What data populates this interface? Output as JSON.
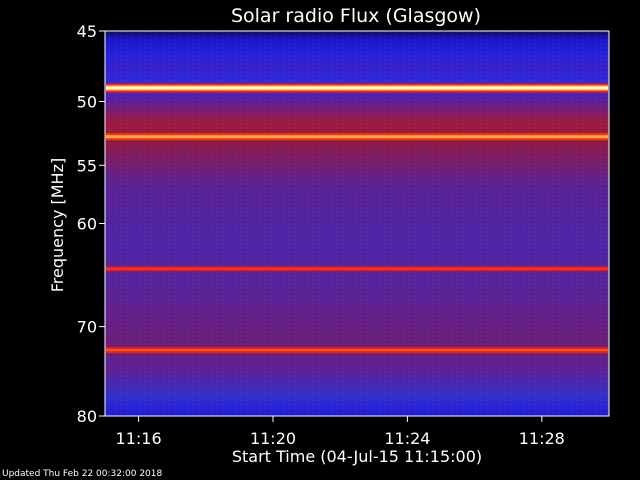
{
  "footer": {
    "updated": "Updated Thu Feb 22 00:32:00 2018"
  },
  "chart_data": {
    "type": "heatmap",
    "title": "Solar radio Flux (Glasgow)",
    "xlabel": "Start Time (04-Jul-15 11:15:00)",
    "ylabel": "Frequency [MHz]",
    "x_axis": {
      "unit": "time",
      "range": [
        "11:15:00",
        "11:30:00"
      ],
      "ticks": [
        "11:16",
        "11:20",
        "11:24",
        "11:28"
      ]
    },
    "y_axis": {
      "unit": "MHz",
      "scale": "log",
      "range": [
        45,
        80
      ],
      "ticks": [
        45,
        50,
        55,
        60,
        70,
        80
      ],
      "tick_labels": [
        "45",
        "50",
        "55",
        "60",
        "70",
        "80"
      ]
    },
    "colormap": [
      "#000033",
      "#1111ff",
      "#5522aa",
      "#aa1133",
      "#ff2200",
      "#ff9933",
      "#ffffcc"
    ],
    "bright_bands_mhz": [
      {
        "freq": 49.0,
        "level": "very high"
      },
      {
        "freq": 52.7,
        "level": "high"
      },
      {
        "freq": 64.2,
        "level": "medium"
      },
      {
        "freq": 72.5,
        "level": "medium-high"
      }
    ],
    "grid": false,
    "legend": "none"
  }
}
